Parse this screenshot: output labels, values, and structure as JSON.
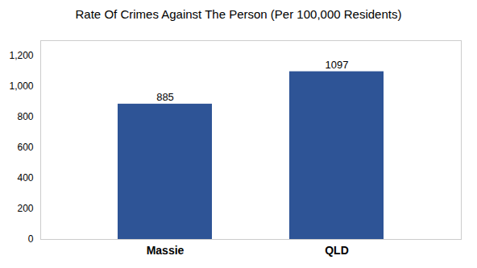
{
  "chart_data": {
    "type": "bar",
    "title": "Rate Of Crimes Against The Person (Per 100,000 Residents)",
    "categories": [
      "Massie",
      "QLD"
    ],
    "values": [
      885,
      1097
    ],
    "color": "#2e5496",
    "ylim": [
      0,
      1300
    ],
    "yticks": [
      0,
      200,
      400,
      600,
      800,
      1000,
      1200
    ],
    "data_labels": true,
    "grid": false
  }
}
